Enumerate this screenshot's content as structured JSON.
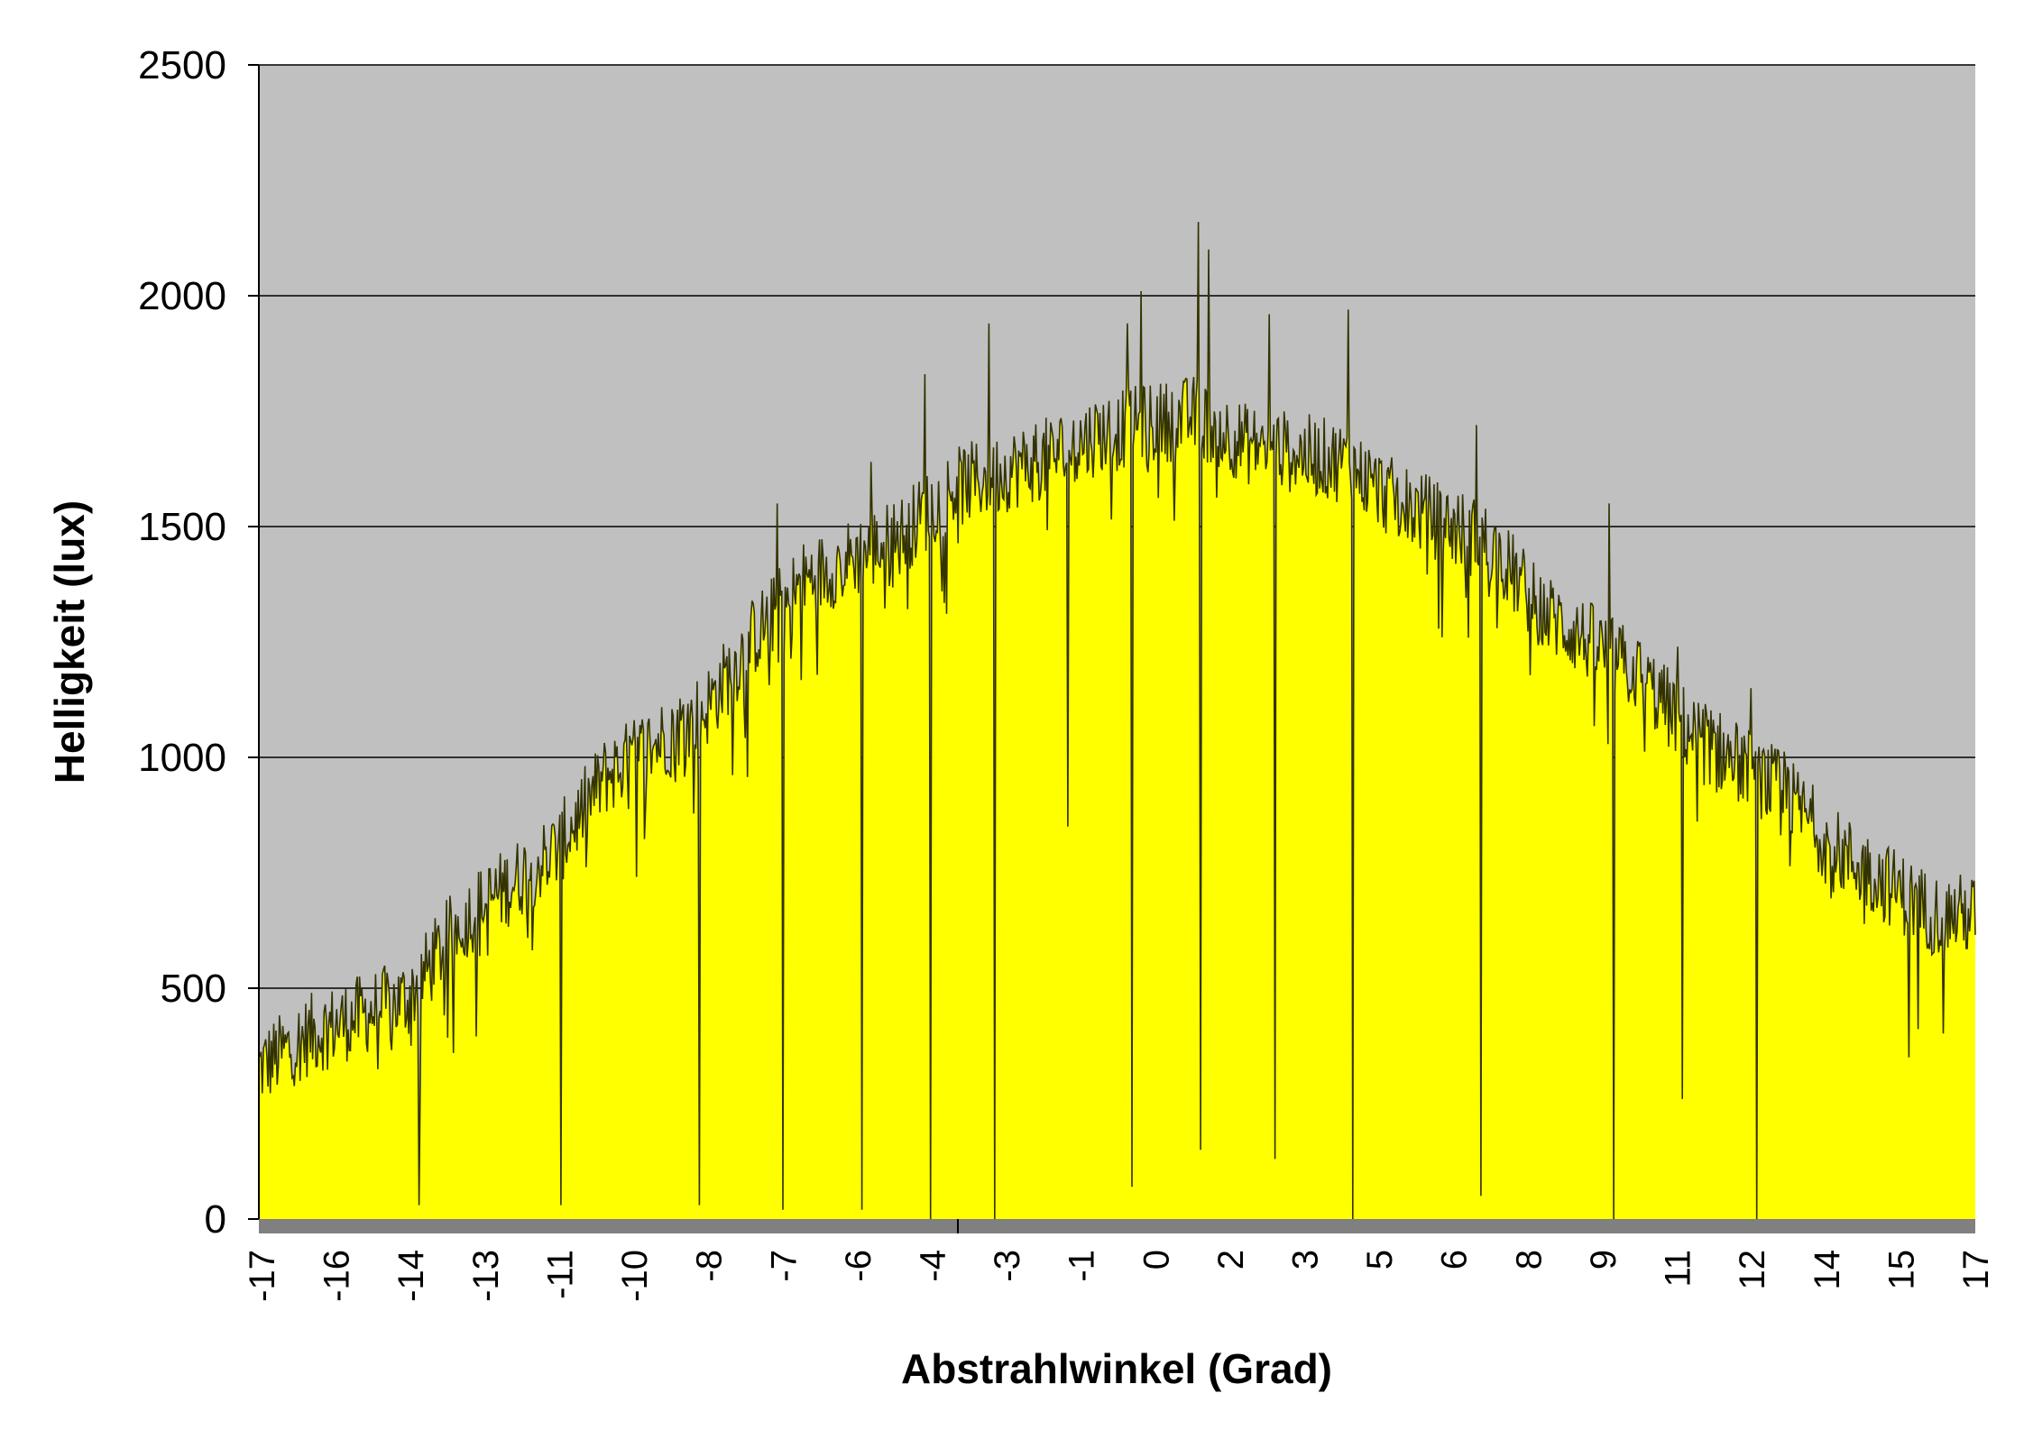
{
  "chart_data": {
    "type": "area",
    "title": "",
    "xlabel": "Abstrahlwinkel (Grad)",
    "ylabel": "Helligkeit (lux)",
    "ylim": [
      0,
      2500
    ],
    "yticks": [
      "0",
      "500",
      "1000",
      "1500",
      "2000",
      "2500"
    ],
    "xticks": [
      "-17",
      "-16",
      "-14",
      "-13",
      "-11",
      "-10",
      "-8",
      "-7",
      "-6",
      "-4",
      "-3",
      "-1",
      "0",
      "2",
      "3",
      "5",
      "6",
      "8",
      "9",
      "11",
      "12",
      "14",
      "15",
      "17"
    ],
    "grid": "horizontal",
    "legend": "none",
    "colors": {
      "plot_background": "#c0c0c0",
      "fill": "#ffff00",
      "line": "#333300",
      "gridline": "#000000",
      "x_axis_band": "#808080"
    },
    "series": [
      {
        "x": [
          -17,
          -16,
          -14,
          -13,
          -11,
          -10,
          -8,
          -7,
          -6,
          -4,
          -3,
          -1,
          0,
          2,
          3,
          5,
          6,
          8,
          9,
          11,
          12,
          14,
          15,
          17
        ],
        "values": [
          330,
          400,
          480,
          640,
          800,
          960,
          1100,
          1260,
          1380,
          1480,
          1580,
          1650,
          1700,
          1740,
          1680,
          1640,
          1560,
          1460,
          1320,
          1180,
          1060,
          920,
          800,
          660
        ]
      }
    ],
    "dips": [
      {
        "x": -13.8,
        "value": 30
      },
      {
        "x": -10.9,
        "value": 30
      },
      {
        "x": -8.1,
        "value": 30
      },
      {
        "x": -6.4,
        "value": 20
      },
      {
        "x": -4.8,
        "value": 20
      },
      {
        "x": -3.4,
        "value": 0
      },
      {
        "x": -2.1,
        "value": 0
      },
      {
        "x": -0.6,
        "value": 850
      },
      {
        "x": 0.7,
        "value": 70
      },
      {
        "x": 2.1,
        "value": 150
      },
      {
        "x": 3.6,
        "value": 130
      },
      {
        "x": 5.2,
        "value": 0
      },
      {
        "x": 7.8,
        "value": 50
      },
      {
        "x": 10.5,
        "value": 0
      },
      {
        "x": 11.9,
        "value": 260
      },
      {
        "x": 13.4,
        "value": 0
      },
      {
        "x": 16.5,
        "value": 350
      }
    ],
    "spikes": [
      {
        "x": -8.1,
        "value": 1340
      },
      {
        "x": -6.5,
        "value": 1550
      },
      {
        "x": -4.6,
        "value": 1640
      },
      {
        "x": -3.5,
        "value": 1830
      },
      {
        "x": -2.2,
        "value": 1940
      },
      {
        "x": 0.6,
        "value": 1940
      },
      {
        "x": 0.9,
        "value": 2010
      },
      {
        "x": 2.05,
        "value": 2160
      },
      {
        "x": 2.25,
        "value": 2100
      },
      {
        "x": 3.5,
        "value": 1960
      },
      {
        "x": 5.1,
        "value": 1970
      },
      {
        "x": 7.7,
        "value": 1720
      },
      {
        "x": 10.4,
        "value": 1550
      },
      {
        "x": 11.8,
        "value": 1240
      },
      {
        "x": 13.3,
        "value": 1150
      }
    ]
  }
}
